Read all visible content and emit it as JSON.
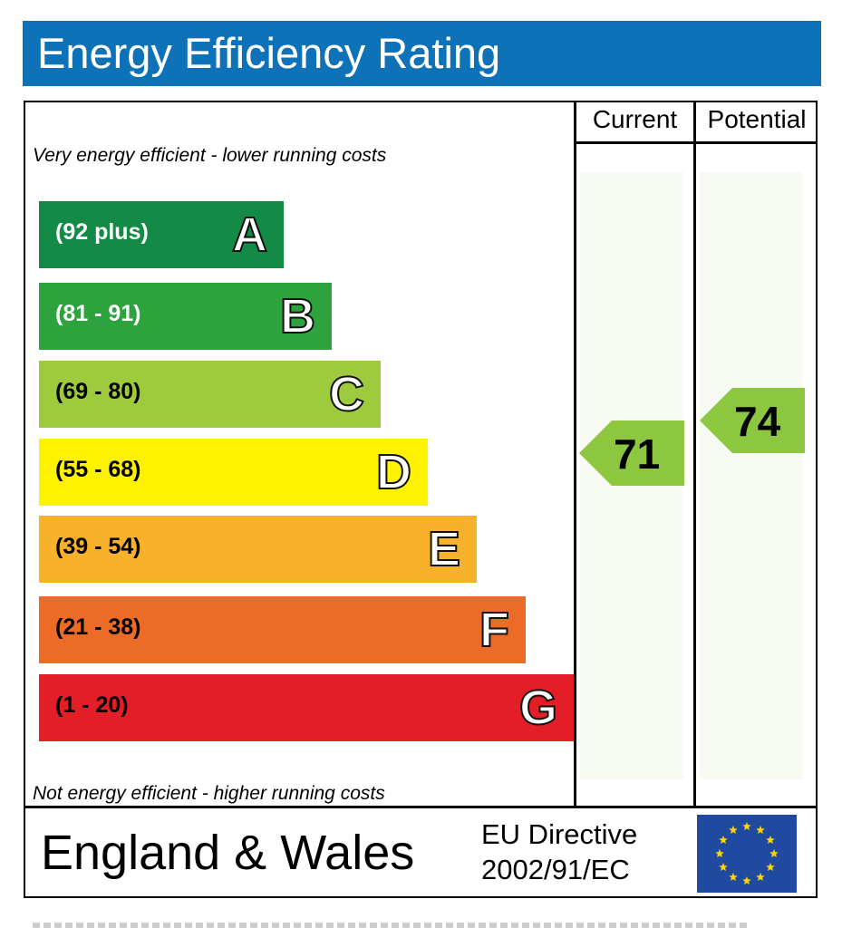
{
  "chart_data": {
    "type": "table",
    "title": "Energy Efficiency Rating",
    "columns": [
      "Current",
      "Potential"
    ],
    "top_note": "Very energy efficient - lower running costs",
    "bottom_note": "Not energy efficient - higher running costs",
    "bands": [
      {
        "letter": "A",
        "range": "(92 plus)",
        "color": "#138a45",
        "text_color": "#ffffff"
      },
      {
        "letter": "B",
        "range": "(81 - 91)",
        "color": "#2ea23c",
        "text_color": "#ffffff"
      },
      {
        "letter": "C",
        "range": "(69 - 80)",
        "color": "#9ecb3d",
        "text_color": "#000000"
      },
      {
        "letter": "D",
        "range": "(55 - 68)",
        "color": "#fff200",
        "text_color": "#000000"
      },
      {
        "letter": "E",
        "range": "(39 - 54)",
        "color": "#f7b12a",
        "text_color": "#000000"
      },
      {
        "letter": "F",
        "range": "(21 - 38)",
        "color": "#ec6b27",
        "text_color": "#000000"
      },
      {
        "letter": "G",
        "range": "(1 - 20)",
        "color": "#e31e26",
        "text_color": "#000000"
      }
    ],
    "current": {
      "value": 71,
      "band": "C",
      "color": "#8dc63f"
    },
    "potential": {
      "value": 74,
      "band": "C",
      "color": "#8dc63f"
    }
  },
  "footer": {
    "country": "England & Wales",
    "directive_line1": "EU Directive",
    "directive_line2": "2002/91/EC"
  },
  "colors": {
    "header": "#0e72b9",
    "eu_flag": "#1f4aa0",
    "eu_stars": "#ffd400"
  },
  "icons": {
    "flag": "eu-flag-icon"
  }
}
